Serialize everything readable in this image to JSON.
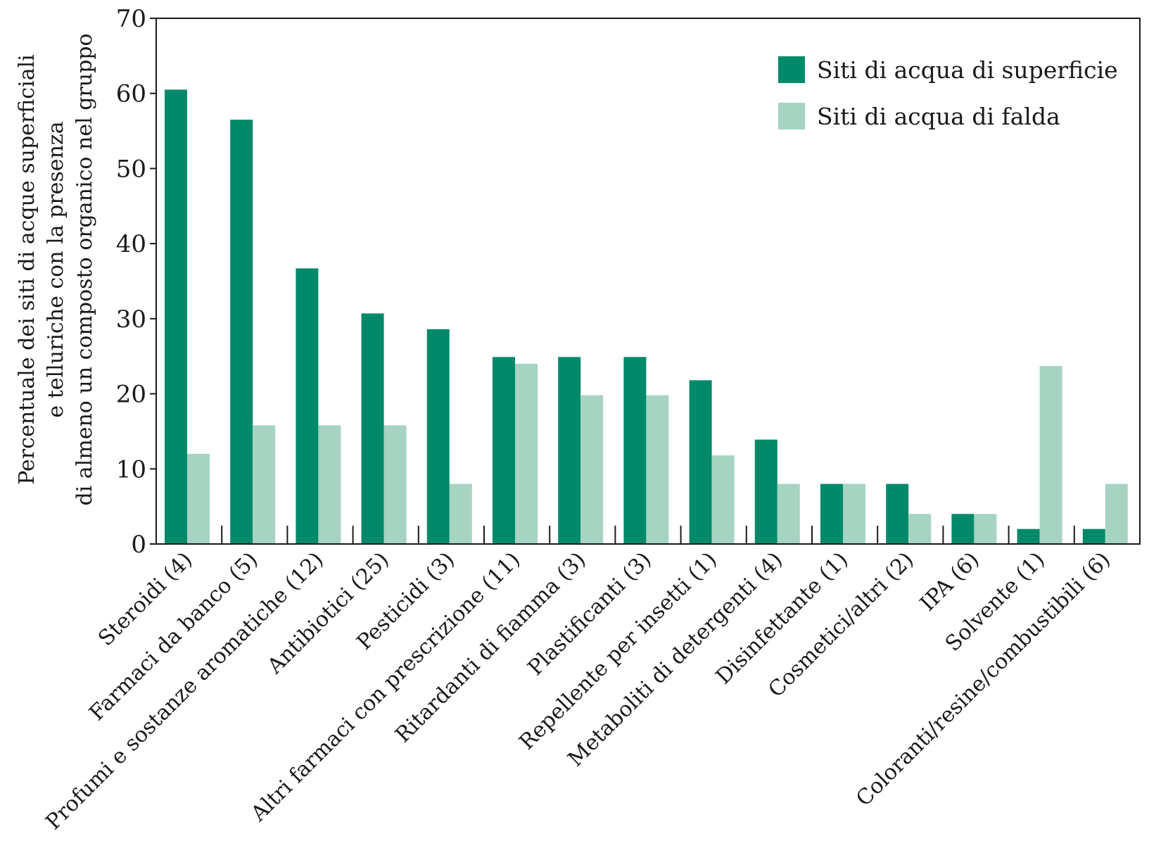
{
  "chart_data": {
    "type": "bar",
    "ylabel_lines": [
      "Percentuale dei siti di acque superficiali",
      "e telluriche con la presenza",
      "di almeno un composto organico nel gruppo"
    ],
    "ylim": [
      0,
      70
    ],
    "yticks": [
      0,
      10,
      20,
      30,
      40,
      50,
      60,
      70
    ],
    "grid": false,
    "legend_position": "top-right",
    "categories": [
      "Steroidi (4)",
      "Farmaci da banco (5)",
      "Profumi e sostanze aromatiche (12)",
      "Antibiotici (25)",
      "Pesticidi (3)",
      "Altri farmaci con prescrizione (11)",
      "Ritardanti di fiamma (3)",
      "Plastificanti (3)",
      "Repellente per insetti (1)",
      "Metaboliti di detergenti (4)",
      "Disinfettante (1)",
      "Cosmetici/altri (2)",
      "IPA (6)",
      "Solvente (1)",
      "Coloranti/resine/combustibili (6)"
    ],
    "series": [
      {
        "name": "Siti di acqua di superficie",
        "color": "#008a6a",
        "values": [
          60.5,
          56.5,
          36.7,
          30.7,
          28.6,
          24.9,
          24.9,
          24.9,
          21.8,
          13.9,
          8.0,
          8.0,
          4.0,
          2.0,
          2.0
        ]
      },
      {
        "name": "Siti di acqua di falda",
        "color": "#a6d3c2",
        "values": [
          12.0,
          15.8,
          15.8,
          15.8,
          8.0,
          24.0,
          19.8,
          19.8,
          11.8,
          8.0,
          8.0,
          4.0,
          4.0,
          23.7,
          8.0
        ]
      }
    ]
  }
}
